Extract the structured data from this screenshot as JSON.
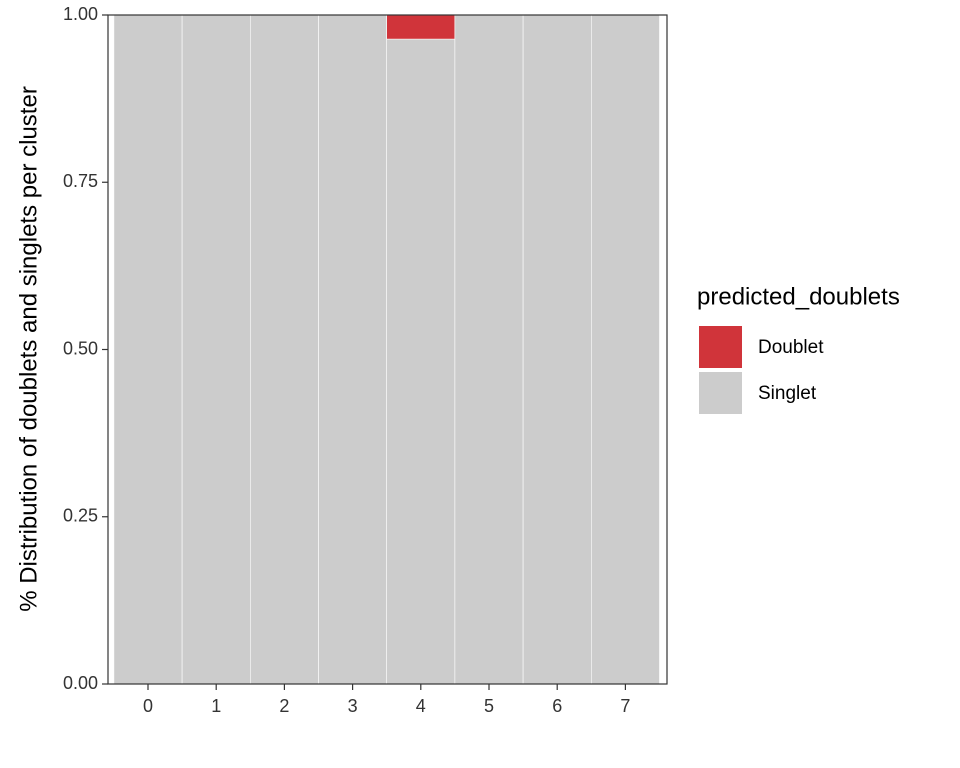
{
  "chart_data": {
    "type": "stacked_bar",
    "y_label": "% Distribution of doublets and singlets per cluster",
    "categories": [
      "0",
      "1",
      "2",
      "3",
      "4",
      "5",
      "6",
      "7"
    ],
    "series": [
      {
        "name": "Doublet",
        "color": "#d0343a",
        "values": [
          0,
          0,
          0,
          0,
          0.036,
          0,
          0,
          0
        ]
      },
      {
        "name": "Singlet",
        "color": "#cccccc",
        "values": [
          1,
          1,
          1,
          1,
          0.964,
          1,
          1,
          1
        ]
      }
    ],
    "ylim": [
      0,
      1
    ],
    "yticks": [
      {
        "value": 0,
        "label": "0.00"
      },
      0.25,
      {
        "value": 0.5,
        "label": "0.50"
      },
      0.75,
      {
        "value": 1,
        "label": "1.00"
      }
    ],
    "legend_title": "predicted_doublets",
    "legend_position": "right"
  }
}
